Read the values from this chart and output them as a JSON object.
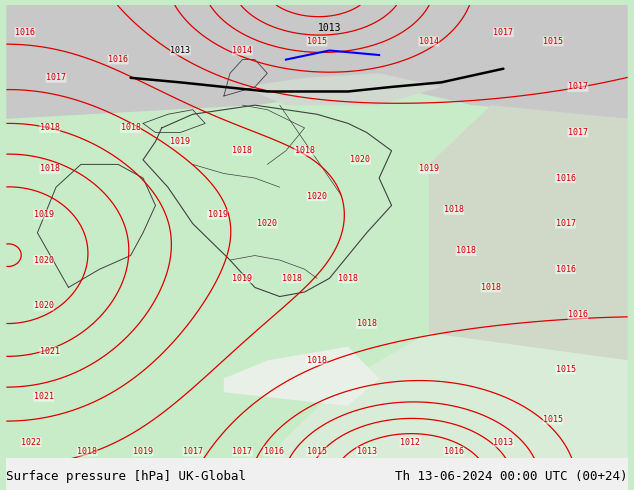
{
  "title_left": "Surface pressure [hPa] UK-Global",
  "title_right": "Th 13-06-2024 00:00 UTC (00+24)",
  "bg_color_light": "#c8e6c9",
  "bg_color_gray": "#d0d0d0",
  "bg_color_white": "#f0f0f0",
  "contour_color_red": "#ff0000",
  "contour_color_black": "#000000",
  "contour_color_blue": "#0000ff",
  "title_fontsize": 10,
  "figsize": [
    6.34,
    4.9
  ],
  "dpi": 100
}
